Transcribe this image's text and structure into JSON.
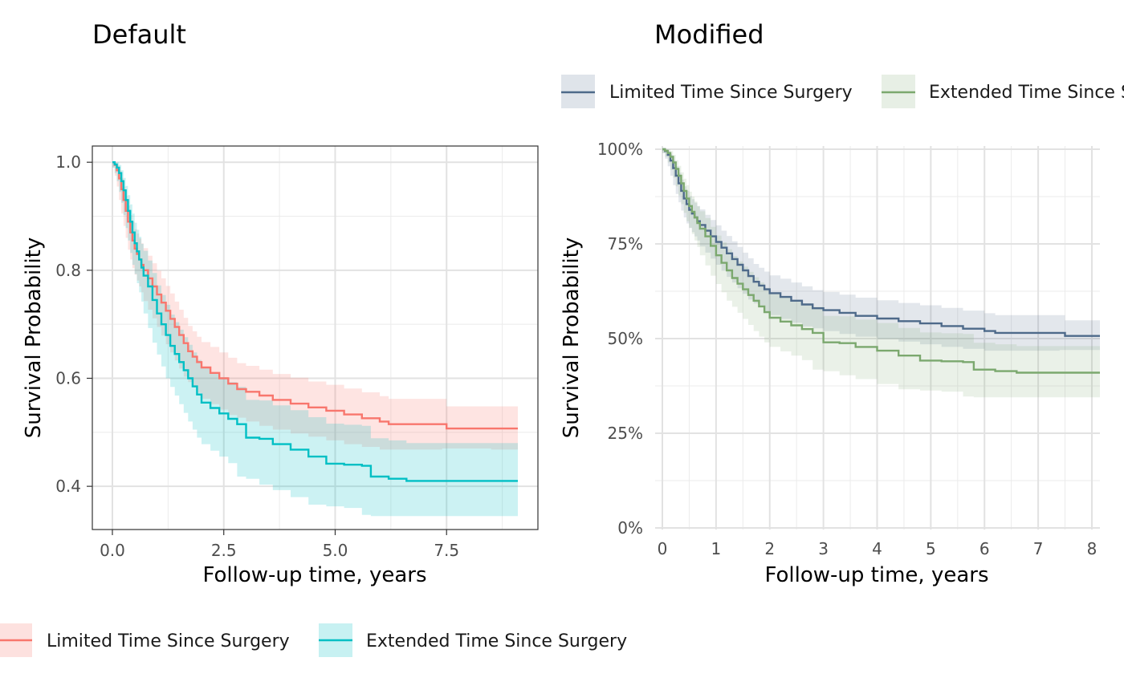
{
  "chart_data": [
    {
      "type": "line",
      "subtype": "kaplan-meier",
      "title": "Default",
      "xlabel": "Follow-up time, years",
      "ylabel": "Survival Probability",
      "xlim": [
        -0.45,
        9.55
      ],
      "ylim": [
        0.32,
        1.03
      ],
      "xticks": [
        0,
        2.5,
        5.0,
        7.5
      ],
      "xtick_labels": [
        "0.0",
        "2.5",
        "5.0",
        "7.5"
      ],
      "yticks": [
        0.4,
        0.6,
        0.8,
        1.0
      ],
      "ytick_labels": [
        "0.4",
        "0.6",
        "0.8",
        "1.0"
      ],
      "grid": true,
      "panel_border": true,
      "legend_position": "bottom-left",
      "series": [
        {
          "name": "Limited Time Since Surgery",
          "color": "#F8766D",
          "band_color": "#F8766D",
          "x": [
            0,
            0.05,
            0.1,
            0.15,
            0.2,
            0.25,
            0.3,
            0.35,
            0.4,
            0.45,
            0.5,
            0.55,
            0.6,
            0.65,
            0.7,
            0.8,
            0.9,
            1.0,
            1.1,
            1.2,
            1.3,
            1.4,
            1.5,
            1.6,
            1.7,
            1.8,
            1.9,
            2.0,
            2.2,
            2.4,
            2.6,
            2.8,
            3.0,
            3.3,
            3.6,
            4.0,
            4.4,
            4.8,
            5.2,
            5.6,
            6.0,
            6.2,
            6.6,
            7.0,
            7.4,
            7.5,
            8.0,
            8.5,
            9.0,
            9.1
          ],
          "y": [
            1.0,
            0.995,
            0.985,
            0.97,
            0.95,
            0.93,
            0.91,
            0.89,
            0.87,
            0.855,
            0.84,
            0.83,
            0.82,
            0.81,
            0.8,
            0.785,
            0.77,
            0.755,
            0.74,
            0.725,
            0.71,
            0.695,
            0.68,
            0.665,
            0.65,
            0.64,
            0.63,
            0.62,
            0.61,
            0.6,
            0.59,
            0.58,
            0.575,
            0.568,
            0.56,
            0.553,
            0.546,
            0.54,
            0.533,
            0.526,
            0.52,
            0.515,
            0.515,
            0.515,
            0.515,
            0.507,
            0.507,
            0.507,
            0.507,
            0.507
          ],
          "lower": [
            1.0,
            0.99,
            0.975,
            0.955,
            0.93,
            0.905,
            0.882,
            0.86,
            0.838,
            0.82,
            0.804,
            0.792,
            0.781,
            0.77,
            0.759,
            0.743,
            0.727,
            0.711,
            0.695,
            0.679,
            0.663,
            0.648,
            0.633,
            0.618,
            0.603,
            0.593,
            0.583,
            0.573,
            0.562,
            0.552,
            0.542,
            0.532,
            0.527,
            0.52,
            0.512,
            0.505,
            0.498,
            0.492,
            0.485,
            0.478,
            0.473,
            0.468,
            0.468,
            0.468,
            0.468,
            0.47,
            0.47,
            0.47,
            0.468,
            0.468
          ],
          "upper": [
            1.0,
            1.0,
            0.995,
            0.985,
            0.97,
            0.955,
            0.938,
            0.92,
            0.902,
            0.89,
            0.876,
            0.868,
            0.859,
            0.85,
            0.841,
            0.827,
            0.813,
            0.799,
            0.785,
            0.771,
            0.757,
            0.742,
            0.727,
            0.712,
            0.697,
            0.687,
            0.677,
            0.667,
            0.658,
            0.648,
            0.638,
            0.628,
            0.623,
            0.616,
            0.608,
            0.601,
            0.594,
            0.588,
            0.581,
            0.574,
            0.567,
            0.562,
            0.562,
            0.562,
            0.562,
            0.548,
            0.548,
            0.548,
            0.548,
            0.548
          ]
        },
        {
          "name": "Extended Time Since Surgery",
          "color": "#00BFC4",
          "band_color": "#00BFC4",
          "x": [
            0,
            0.05,
            0.1,
            0.15,
            0.2,
            0.25,
            0.3,
            0.35,
            0.4,
            0.45,
            0.5,
            0.55,
            0.6,
            0.65,
            0.7,
            0.8,
            0.9,
            1.0,
            1.1,
            1.2,
            1.3,
            1.4,
            1.5,
            1.6,
            1.7,
            1.8,
            1.9,
            2.0,
            2.2,
            2.4,
            2.6,
            2.8,
            3.0,
            3.3,
            3.6,
            4.0,
            4.4,
            4.8,
            5.2,
            5.6,
            5.8,
            6.2,
            6.6,
            7.0,
            7.5,
            8.0,
            8.5,
            9.0,
            9.1
          ],
          "y": [
            1.0,
            0.996,
            0.99,
            0.98,
            0.965,
            0.948,
            0.93,
            0.91,
            0.89,
            0.87,
            0.85,
            0.835,
            0.82,
            0.805,
            0.79,
            0.77,
            0.745,
            0.72,
            0.7,
            0.68,
            0.66,
            0.645,
            0.63,
            0.615,
            0.6,
            0.585,
            0.57,
            0.555,
            0.545,
            0.535,
            0.525,
            0.515,
            0.49,
            0.488,
            0.478,
            0.468,
            0.455,
            0.442,
            0.44,
            0.438,
            0.418,
            0.414,
            0.41,
            0.41,
            0.41,
            0.41,
            0.41,
            0.41,
            0.41
          ],
          "lower": [
            1.0,
            0.99,
            0.98,
            0.965,
            0.945,
            0.925,
            0.902,
            0.878,
            0.855,
            0.832,
            0.81,
            0.793,
            0.776,
            0.759,
            0.742,
            0.72,
            0.693,
            0.666,
            0.644,
            0.622,
            0.6,
            0.584,
            0.568,
            0.552,
            0.536,
            0.52,
            0.505,
            0.49,
            0.478,
            0.466,
            0.455,
            0.443,
            0.418,
            0.414,
            0.403,
            0.393,
            0.38,
            0.366,
            0.363,
            0.36,
            0.347,
            0.345,
            0.345,
            0.345,
            0.345,
            0.345,
            0.345,
            0.345,
            0.345
          ],
          "upper": [
            1.0,
            1.0,
            1.0,
            0.995,
            0.985,
            0.971,
            0.956,
            0.939,
            0.922,
            0.905,
            0.888,
            0.875,
            0.862,
            0.849,
            0.836,
            0.818,
            0.795,
            0.772,
            0.754,
            0.736,
            0.718,
            0.704,
            0.69,
            0.676,
            0.662,
            0.648,
            0.634,
            0.62,
            0.611,
            0.602,
            0.593,
            0.584,
            0.56,
            0.559,
            0.55,
            0.541,
            0.528,
            0.516,
            0.514,
            0.512,
            0.489,
            0.485,
            0.48,
            0.48,
            0.48,
            0.48,
            0.48,
            0.48,
            0.48
          ]
        }
      ]
    },
    {
      "type": "line",
      "subtype": "kaplan-meier",
      "title": "Modified",
      "xlabel": "Follow-up time, years",
      "ylabel": "Survival Probability",
      "xlim": [
        0,
        8.15
      ],
      "ylim": [
        0,
        1.0
      ],
      "xticks": [
        0,
        1,
        2,
        3,
        4,
        5,
        6,
        7,
        8
      ],
      "xtick_labels": [
        "0",
        "1",
        "2",
        "3",
        "4",
        "5",
        "6",
        "7",
        "8"
      ],
      "yticks": [
        0,
        0.25,
        0.5,
        0.75,
        1.0
      ],
      "ytick_labels": [
        "0%",
        "25%",
        "50%",
        "75%",
        "100%"
      ],
      "grid": true,
      "panel_border": false,
      "legend_position": "top",
      "series": [
        {
          "name": "Limited Time Since Surgery",
          "color": "#4E6A8A",
          "band_color": "#4E6A8A",
          "x": [
            0,
            0.05,
            0.1,
            0.15,
            0.2,
            0.25,
            0.3,
            0.35,
            0.4,
            0.45,
            0.5,
            0.55,
            0.6,
            0.65,
            0.7,
            0.8,
            0.9,
            1.0,
            1.1,
            1.2,
            1.3,
            1.4,
            1.5,
            1.6,
            1.7,
            1.8,
            1.9,
            2.0,
            2.2,
            2.4,
            2.6,
            2.8,
            3.0,
            3.3,
            3.6,
            4.0,
            4.4,
            4.8,
            5.2,
            5.6,
            6.0,
            6.2,
            6.6,
            7.0,
            7.4,
            7.5,
            8.0,
            8.15
          ],
          "y": [
            1.0,
            0.995,
            0.985,
            0.97,
            0.95,
            0.93,
            0.91,
            0.89,
            0.87,
            0.855,
            0.84,
            0.83,
            0.82,
            0.81,
            0.8,
            0.785,
            0.77,
            0.755,
            0.74,
            0.725,
            0.71,
            0.695,
            0.68,
            0.665,
            0.65,
            0.64,
            0.63,
            0.62,
            0.61,
            0.6,
            0.59,
            0.58,
            0.575,
            0.568,
            0.56,
            0.553,
            0.546,
            0.54,
            0.533,
            0.526,
            0.52,
            0.515,
            0.515,
            0.515,
            0.515,
            0.507,
            0.507,
            0.507
          ],
          "lower": [
            1.0,
            0.99,
            0.975,
            0.955,
            0.93,
            0.905,
            0.882,
            0.86,
            0.838,
            0.82,
            0.804,
            0.792,
            0.781,
            0.77,
            0.759,
            0.743,
            0.727,
            0.711,
            0.695,
            0.679,
            0.663,
            0.648,
            0.633,
            0.618,
            0.603,
            0.593,
            0.583,
            0.573,
            0.562,
            0.552,
            0.542,
            0.532,
            0.527,
            0.52,
            0.512,
            0.505,
            0.498,
            0.492,
            0.485,
            0.478,
            0.473,
            0.468,
            0.468,
            0.468,
            0.468,
            0.47,
            0.47,
            0.47
          ],
          "upper": [
            1.0,
            1.0,
            0.995,
            0.985,
            0.97,
            0.955,
            0.938,
            0.92,
            0.902,
            0.89,
            0.876,
            0.868,
            0.859,
            0.85,
            0.841,
            0.827,
            0.813,
            0.799,
            0.785,
            0.771,
            0.757,
            0.742,
            0.727,
            0.712,
            0.697,
            0.687,
            0.677,
            0.667,
            0.658,
            0.648,
            0.638,
            0.628,
            0.623,
            0.616,
            0.608,
            0.601,
            0.594,
            0.588,
            0.581,
            0.574,
            0.567,
            0.562,
            0.562,
            0.562,
            0.562,
            0.548,
            0.548,
            0.548
          ]
        },
        {
          "name": "Extended Time Since Surgery",
          "color": "#7BA86E",
          "band_color": "#7BA86E",
          "x": [
            0,
            0.05,
            0.1,
            0.15,
            0.2,
            0.25,
            0.3,
            0.35,
            0.4,
            0.45,
            0.5,
            0.55,
            0.6,
            0.65,
            0.7,
            0.8,
            0.9,
            1.0,
            1.1,
            1.2,
            1.3,
            1.4,
            1.5,
            1.6,
            1.7,
            1.8,
            1.9,
            2.0,
            2.2,
            2.4,
            2.6,
            2.8,
            3.0,
            3.3,
            3.6,
            4.0,
            4.4,
            4.8,
            5.2,
            5.6,
            5.8,
            6.2,
            6.6,
            7.0,
            7.5,
            8.0,
            8.15
          ],
          "y": [
            1.0,
            0.996,
            0.99,
            0.98,
            0.965,
            0.948,
            0.93,
            0.91,
            0.89,
            0.87,
            0.85,
            0.835,
            0.82,
            0.805,
            0.79,
            0.77,
            0.745,
            0.72,
            0.7,
            0.68,
            0.66,
            0.645,
            0.63,
            0.615,
            0.6,
            0.585,
            0.57,
            0.555,
            0.545,
            0.535,
            0.525,
            0.515,
            0.49,
            0.488,
            0.478,
            0.468,
            0.455,
            0.442,
            0.44,
            0.438,
            0.418,
            0.414,
            0.41,
            0.41,
            0.41,
            0.41,
            0.41
          ],
          "lower": [
            1.0,
            0.99,
            0.98,
            0.965,
            0.945,
            0.925,
            0.902,
            0.878,
            0.855,
            0.832,
            0.81,
            0.793,
            0.776,
            0.759,
            0.742,
            0.72,
            0.693,
            0.666,
            0.644,
            0.622,
            0.6,
            0.584,
            0.568,
            0.552,
            0.536,
            0.52,
            0.505,
            0.49,
            0.478,
            0.466,
            0.455,
            0.443,
            0.418,
            0.414,
            0.403,
            0.393,
            0.38,
            0.366,
            0.363,
            0.36,
            0.347,
            0.345,
            0.345,
            0.345,
            0.345,
            0.345,
            0.345
          ],
          "upper": [
            1.0,
            1.0,
            1.0,
            0.995,
            0.985,
            0.971,
            0.956,
            0.939,
            0.922,
            0.905,
            0.888,
            0.875,
            0.862,
            0.849,
            0.836,
            0.818,
            0.795,
            0.772,
            0.754,
            0.736,
            0.718,
            0.704,
            0.69,
            0.676,
            0.662,
            0.648,
            0.634,
            0.62,
            0.611,
            0.602,
            0.593,
            0.584,
            0.56,
            0.559,
            0.55,
            0.541,
            0.528,
            0.516,
            0.514,
            0.512,
            0.489,
            0.485,
            0.48,
            0.48,
            0.48,
            0.48,
            0.48
          ]
        }
      ]
    }
  ]
}
